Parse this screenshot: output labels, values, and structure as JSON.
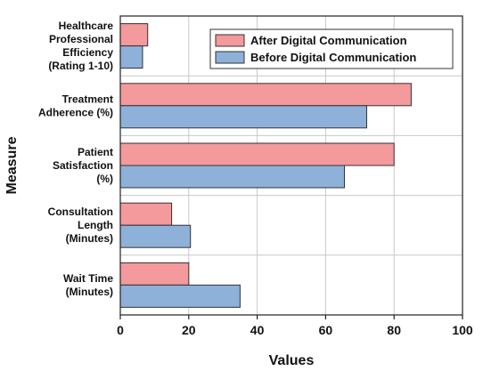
{
  "chart_data": {
    "type": "bar",
    "orientation": "horizontal",
    "xlabel": "Values",
    "ylabel": "Measure",
    "xlim": [
      0,
      100
    ],
    "xticks": [
      0,
      20,
      40,
      60,
      80,
      100
    ],
    "grid": true,
    "legend_position": "top-right",
    "categories": [
      {
        "key": "wait",
        "lines": [
          "Wait Time",
          "(Minutes)"
        ]
      },
      {
        "key": "consult",
        "lines": [
          "Consultation",
          "Length",
          "(Minutes)"
        ]
      },
      {
        "key": "satisfaction",
        "lines": [
          "Patient",
          "Satisfaction",
          "(%)"
        ]
      },
      {
        "key": "adherence",
        "lines": [
          "Treatment",
          "Adherence (%)"
        ]
      },
      {
        "key": "efficiency",
        "lines": [
          "Healthcare",
          "Professional",
          "Efficiency",
          "(Rating 1-10)"
        ]
      }
    ],
    "series": [
      {
        "name": "After Digital Communication",
        "color": "#f4999c",
        "values": [
          20,
          15,
          80,
          85,
          8
        ]
      },
      {
        "name": "Before Digital Communication",
        "color": "#8eb1d9",
        "values": [
          35,
          20.5,
          65.5,
          72,
          6.5
        ]
      }
    ]
  }
}
